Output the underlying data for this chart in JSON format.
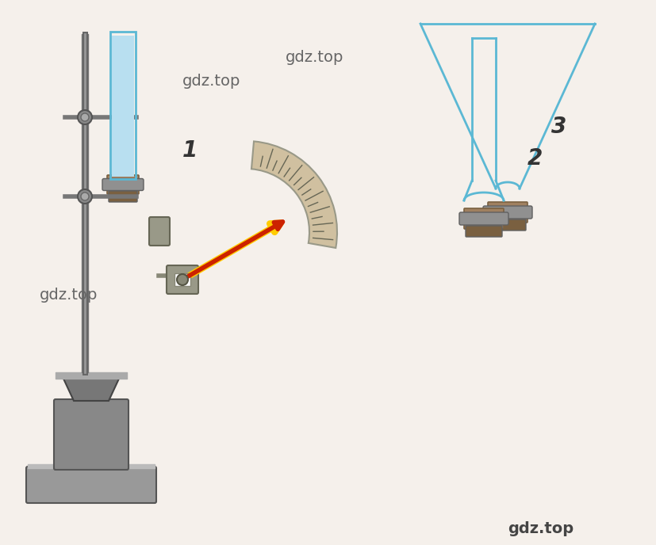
{
  "bg_color": "#f5f0eb",
  "tube_color": "#add8e6",
  "tube_outline": "#5bb8d4",
  "water_color": "#b8dff0",
  "metal_color": "#a08060",
  "metal_dark": "#7a6040",
  "metal_light": "#c8a870",
  "gray_metal": "#909090",
  "gray_dark": "#606060",
  "gray_light": "#c0c0c0",
  "stand_color": "#888888",
  "arrow_color": "#cc2200",
  "arrow_outline": "#ffcc00",
  "scale_color": "#d0c0a0",
  "label1": "1",
  "label2": "2",
  "label3": "3",
  "watermark": "gdz.top",
  "label_fontsize": 20,
  "wm_fontsize": 14
}
